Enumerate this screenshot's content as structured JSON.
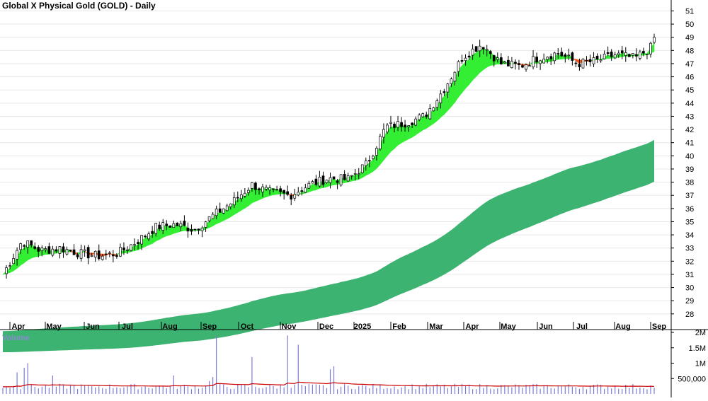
{
  "chart_data": [
    {
      "type": "candlestick",
      "title": "Global X Physical Gold (GOLD) - Daily",
      "colors": {
        "up": "#ffffff",
        "down": "#000000",
        "candle_outline": "#000000",
        "short_band_up": "#33ee33",
        "short_band_down": "#ee5a22",
        "long_band": "#3cb371",
        "grid": "#e8e8e8"
      },
      "y_axis": {
        "position": "right",
        "range": [
          27.4,
          51.4
        ],
        "ticks": [
          28,
          29,
          30,
          31,
          32,
          33,
          34,
          35,
          36,
          37,
          38,
          39,
          40,
          41,
          42,
          43,
          44,
          45,
          46,
          47,
          48,
          49,
          50,
          51
        ]
      },
      "x_axis": {
        "labels": [
          "Apr",
          "May",
          "Jun",
          "Jul",
          "Aug",
          "Sep",
          "Oct",
          "Nov",
          "Dec",
          "2025",
          "Feb",
          "Mar",
          "Apr",
          "May",
          "Jun",
          "Jul",
          "Aug",
          "Sep"
        ]
      },
      "price_anchors": [
        [
          "Apr",
          31.0
        ],
        [
          "mid-Apr",
          33.5
        ],
        [
          "May",
          32.8
        ],
        [
          "mid-May",
          33.0
        ],
        [
          "Jun",
          32.6
        ],
        [
          "mid-Jun",
          32.4
        ],
        [
          "Jul",
          32.6
        ],
        [
          "mid-Jul",
          33.5
        ],
        [
          "Aug",
          34.6
        ],
        [
          "mid-Aug",
          34.8
        ],
        [
          "Sep",
          34.4
        ],
        [
          "mid-Sep",
          35.5
        ],
        [
          "Oct",
          36.5
        ],
        [
          "mid-Oct",
          37.8
        ],
        [
          "Nov",
          37.2
        ],
        [
          "mid-Nov",
          37.0
        ],
        [
          "Dec",
          37.8
        ],
        [
          "mid-Dec",
          38.3
        ],
        [
          "2025",
          38.2
        ],
        [
          "mid-Jan",
          39.4
        ],
        [
          "Feb",
          42.2
        ],
        [
          "mid-Feb",
          42.5
        ],
        [
          "Mar",
          43.0
        ],
        [
          "mid-Mar",
          45.0
        ],
        [
          "Apr",
          47.5
        ],
        [
          "mid-Apr",
          48.5
        ],
        [
          "May",
          47.0
        ],
        [
          "mid-May",
          46.8
        ],
        [
          "Jun",
          47.5
        ],
        [
          "mid-Jun",
          47.8
        ],
        [
          "Jul",
          47.0
        ],
        [
          "mid-Jul",
          47.2
        ],
        [
          "Aug",
          47.7
        ],
        [
          "mid-Aug",
          47.4
        ],
        [
          "Sep",
          48.4
        ]
      ],
      "last_close": 49.0
    },
    {
      "type": "bar",
      "title": "Volume",
      "y_axis": {
        "position": "right",
        "range": [
          0,
          2000000
        ],
        "ticks": [
          [
            "500,000",
            500000
          ],
          [
            "1M",
            1000000
          ],
          [
            "1.5M",
            1500000
          ],
          [
            "2M",
            2000000
          ]
        ]
      },
      "colors": {
        "bars": "#7b7bd6",
        "average": "#cc0000"
      },
      "baseline_volume": 150000,
      "average_volume": 270000,
      "spikes": [
        [
          "Jun",
          250000
        ],
        [
          "Aug",
          600000
        ],
        [
          "Sep",
          1900000
        ],
        [
          "Sep",
          420000
        ],
        [
          "Oct",
          1200000
        ],
        [
          "Nov",
          1600000
        ],
        [
          "Nov",
          1900000
        ],
        [
          "Dec",
          800000
        ],
        [
          "Dec",
          900000
        ],
        [
          "Apr",
          700000
        ],
        [
          "Apr",
          850000
        ],
        [
          "Apr",
          1000000
        ],
        [
          "May",
          600000
        ],
        [
          "Sep",
          550000
        ]
      ]
    }
  ]
}
